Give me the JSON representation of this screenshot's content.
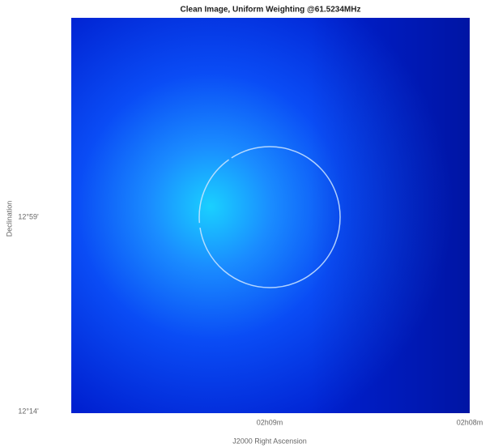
{
  "chart_data": {
    "type": "image",
    "title": "Clean Image, Uniform Weighting @61.5234MHz",
    "xlabel": "J2000 Right Ascension",
    "ylabel": "Declination",
    "xtick_labels": [
      "02h09m",
      "02h08m"
    ],
    "ytick_labels": [
      "12°59'",
      "12°14'"
    ]
  }
}
